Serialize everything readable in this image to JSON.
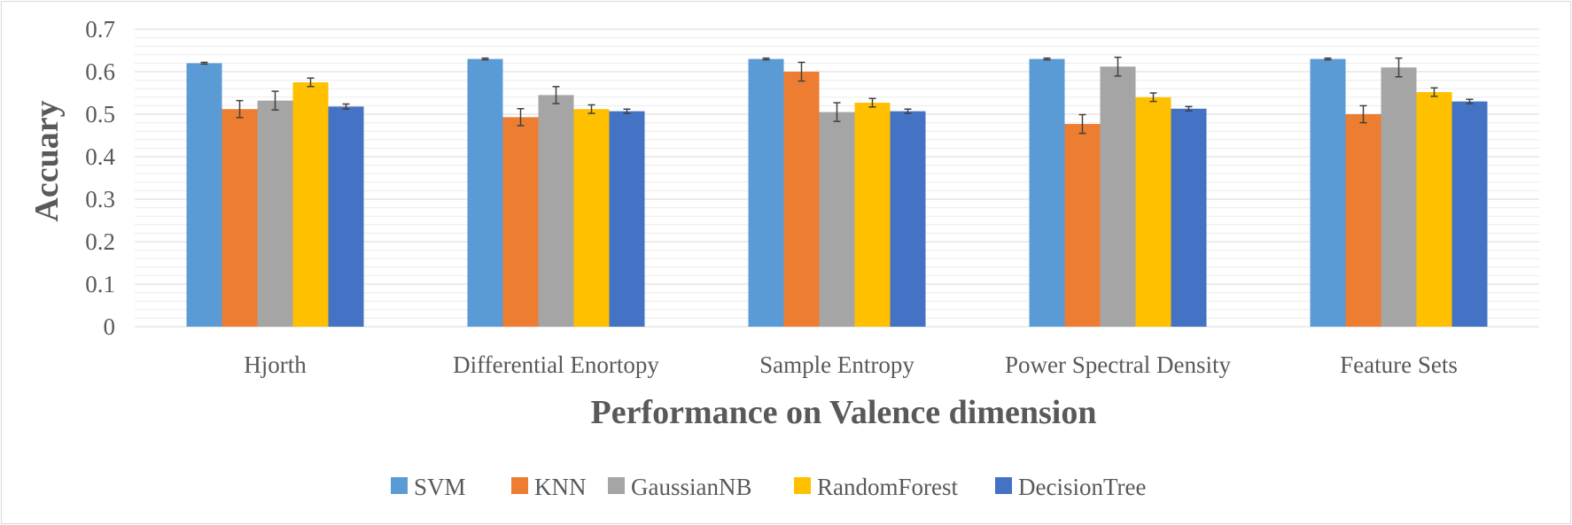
{
  "chart_data": {
    "type": "bar",
    "title": "",
    "xlabel": "Performance on Valence dimension",
    "ylabel": "Accuary",
    "ylim": [
      0,
      0.7
    ],
    "yticks": [
      "0",
      "0.1",
      "0.2",
      "0.3",
      "0.4",
      "0.5",
      "0.6",
      "0.7"
    ],
    "ytick_values": [
      0,
      0.1,
      0.2,
      0.3,
      0.4,
      0.5,
      0.6,
      0.7
    ],
    "minor_grid_step": 0.02,
    "grid": true,
    "legend_position": "bottom",
    "categories": [
      "Hjorth",
      "Differential Enortopy",
      "Sample Entropy",
      "Power Spectral Density",
      "Feature Sets"
    ],
    "series": [
      {
        "name": "SVM",
        "color": "#5B9BD5",
        "values": [
          0.62,
          0.63,
          0.63,
          0.63,
          0.63
        ],
        "errors": [
          0.002,
          0.002,
          0.002,
          0.002,
          0.002
        ]
      },
      {
        "name": "KNN",
        "color": "#ED7D31",
        "values": [
          0.512,
          0.493,
          0.6,
          0.477,
          0.5
        ],
        "errors": [
          0.02,
          0.02,
          0.022,
          0.022,
          0.02
        ]
      },
      {
        "name": "GaussianNB",
        "color": "#A5A5A5",
        "values": [
          0.532,
          0.545,
          0.505,
          0.612,
          0.61
        ],
        "errors": [
          0.022,
          0.02,
          0.022,
          0.022,
          0.022
        ]
      },
      {
        "name": "RandomForest",
        "color": "#FFC000",
        "values": [
          0.575,
          0.512,
          0.527,
          0.54,
          0.552
        ],
        "errors": [
          0.01,
          0.01,
          0.01,
          0.01,
          0.01
        ]
      },
      {
        "name": "DecisionTree",
        "color": "#4472C4",
        "values": [
          0.518,
          0.507,
          0.507,
          0.513,
          0.53
        ],
        "errors": [
          0.006,
          0.005,
          0.005,
          0.005,
          0.005
        ]
      }
    ]
  }
}
